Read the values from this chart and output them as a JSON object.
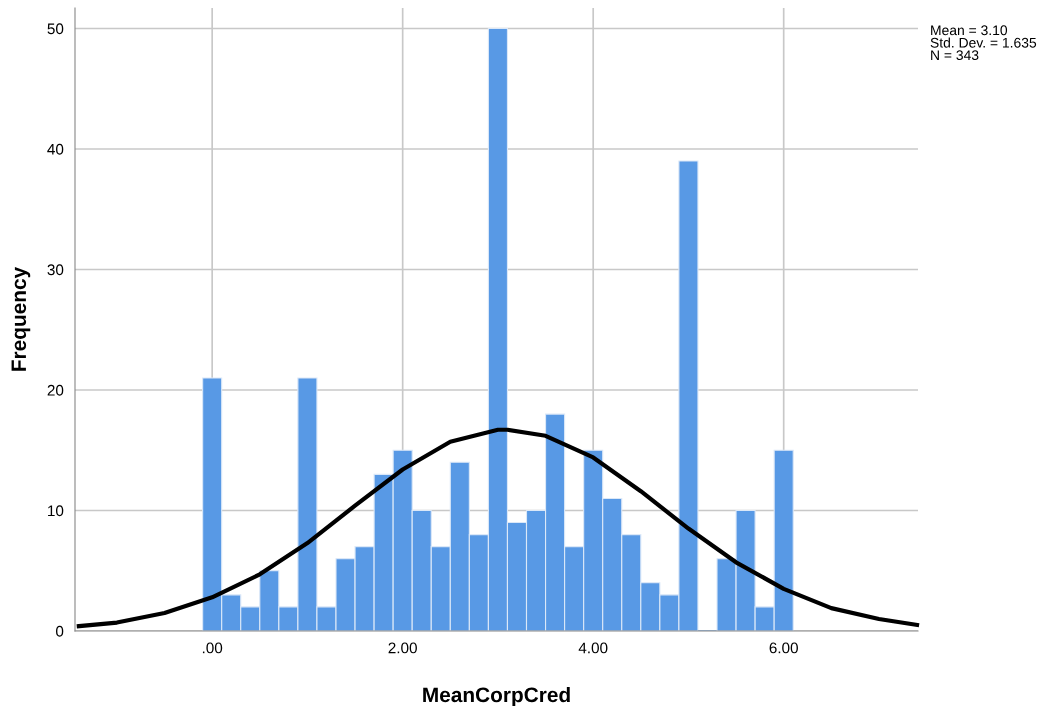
{
  "chart_data": {
    "type": "histogram",
    "xlabel": "MeanCorpCred",
    "ylabel": "Frequency",
    "bins": [
      -0.1,
      0.1,
      0.3,
      0.5,
      0.7,
      0.9,
      1.1,
      1.3,
      1.5,
      1.7,
      1.9,
      2.1,
      2.3,
      2.5,
      2.7,
      2.9,
      3.1,
      3.3,
      3.5,
      3.7,
      3.9,
      4.1,
      4.3,
      4.5,
      4.7,
      4.9,
      5.1,
      5.3,
      5.5,
      5.7,
      5.9,
      6.1
    ],
    "values": [
      21,
      3,
      2,
      5,
      2,
      21,
      2,
      6,
      7,
      13,
      15,
      10,
      7,
      14,
      8,
      50,
      9,
      10,
      18,
      7,
      15,
      11,
      8,
      4,
      3,
      39,
      0,
      6,
      10,
      2,
      15
    ],
    "color": "#5899e5",
    "series": [
      {
        "type": "line",
        "color": "#000000",
        "x": [
          -1.4,
          -1.0,
          -0.5,
          0,
          0.5,
          1.0,
          1.5,
          2.0,
          2.5,
          3.0,
          3.1,
          3.5,
          4.0,
          4.5,
          5.0,
          5.5,
          6.0,
          6.5,
          7.0,
          7.4
        ],
        "values": [
          0.4,
          0.7,
          1.5,
          2.8,
          4.7,
          7.3,
          10.4,
          13.4,
          15.7,
          16.7,
          16.7,
          16.2,
          14.4,
          11.6,
          8.5,
          5.7,
          3.5,
          1.9,
          1.0,
          0.5
        ]
      }
    ],
    "xlim": [
      -1.44,
      7.41
    ],
    "ylim": [
      0,
      51.7
    ],
    "xticks": [
      {
        "value": 0,
        "label": ".00"
      },
      {
        "value": 2,
        "label": "2.00"
      },
      {
        "value": 4,
        "label": "4.00"
      },
      {
        "value": 6,
        "label": "6.00"
      }
    ],
    "yticks": [
      0,
      10,
      20,
      30,
      40,
      50
    ],
    "grid": true,
    "annotations": [
      "Mean = 3.10\nStd. Dev. = 1.635\nN = 343"
    ]
  }
}
